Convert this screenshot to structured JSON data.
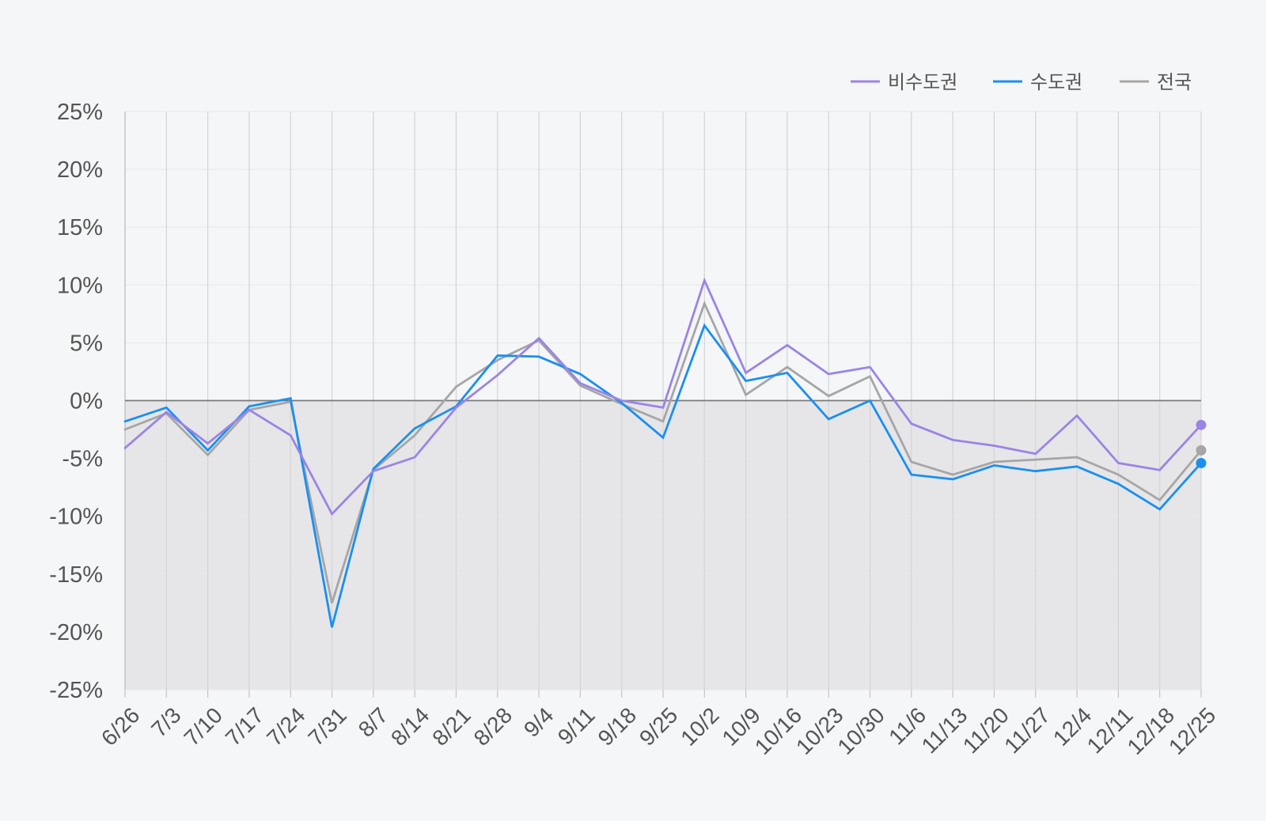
{
  "chart_data": {
    "type": "line",
    "title": "",
    "xlabel": "",
    "ylabel": "",
    "ylim": [
      -25,
      25
    ],
    "yticks": [
      25,
      20,
      15,
      10,
      5,
      0,
      -5,
      -10,
      -15,
      -20,
      -25
    ],
    "ytick_labels": [
      "25%",
      "20%",
      "15%",
      "10%",
      "5%",
      "0%",
      "-5%",
      "-10%",
      "-15%",
      "-20%",
      "-25%"
    ],
    "grid": true,
    "legend_position": "top-right",
    "negative_region_shaded": true,
    "categories": [
      "6/26",
      "7/3",
      "7/10",
      "7/17",
      "7/24",
      "7/31",
      "8/7",
      "8/14",
      "8/21",
      "8/28",
      "9/4",
      "9/11",
      "9/18",
      "9/25",
      "10/2",
      "10/9",
      "10/16",
      "10/23",
      "10/30",
      "11/6",
      "11/13",
      "11/20",
      "11/27",
      "12/4",
      "12/11",
      "12/18",
      "12/25"
    ],
    "series": [
      {
        "name": "비수도권",
        "color": "#9b84e6",
        "values": [
          -4.1,
          -1.0,
          -3.7,
          -0.8,
          -3.0,
          -9.8,
          -6.1,
          -4.9,
          -0.6,
          2.2,
          5.4,
          1.5,
          0.0,
          -0.6,
          10.4,
          2.4,
          4.8,
          2.3,
          2.9,
          -2.0,
          -3.4,
          -3.9,
          -4.6,
          -1.3,
          -5.4,
          -6.0,
          -2.1
        ]
      },
      {
        "name": "수도권",
        "color": "#1a8ff0",
        "values": [
          -1.8,
          -0.6,
          -4.3,
          -0.5,
          0.2,
          -19.6,
          -5.9,
          -2.4,
          -0.5,
          3.9,
          3.8,
          2.3,
          -0.2,
          -3.2,
          6.5,
          1.7,
          2.4,
          -1.6,
          0.0,
          -6.4,
          -6.8,
          -5.6,
          -6.1,
          -5.7,
          -7.2,
          -9.4,
          -5.4
        ]
      },
      {
        "name": "전국",
        "color": "#a6a6a6",
        "values": [
          -2.5,
          -1.1,
          -4.7,
          -0.8,
          -0.1,
          -17.5,
          -6.0,
          -3.0,
          1.2,
          3.5,
          5.2,
          1.3,
          -0.3,
          -1.8,
          8.4,
          0.5,
          2.9,
          0.4,
          2.1,
          -5.3,
          -6.4,
          -5.3,
          -5.1,
          -4.9,
          -6.4,
          -8.6,
          -4.3
        ]
      }
    ]
  }
}
